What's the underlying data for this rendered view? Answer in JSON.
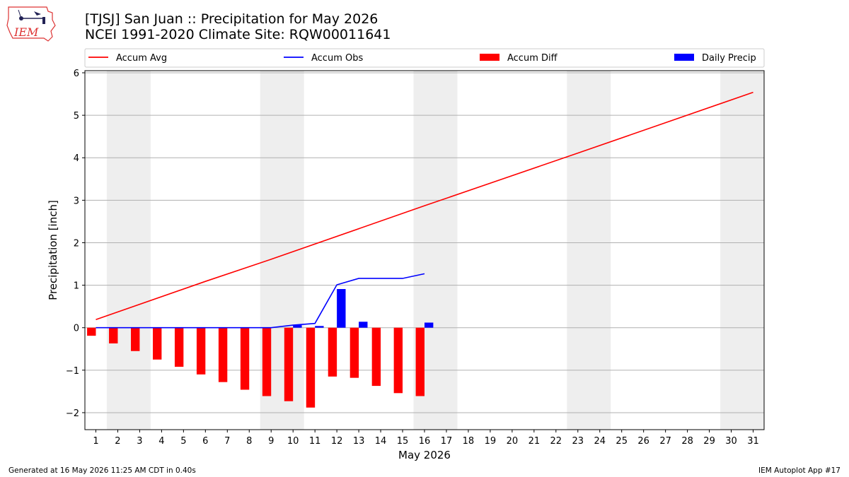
{
  "header": {
    "title_line1": "[TJSJ] San Juan :: Precipitation for May 2026",
    "title_line2": "NCEI 1991-2020 Climate Site: RQW00011641",
    "logo_text": "IEM"
  },
  "footer": {
    "left": "Generated at 16 May 2026 11:25 AM CDT in 0.40s",
    "right": "IEM Autoplot App #17"
  },
  "colors": {
    "avg": "#ff0000",
    "obs": "#0000ff",
    "diff": "#ff0000",
    "daily": "#0000ff",
    "weekend": "#eeeeee",
    "grid": "#b0b0b0"
  },
  "chart_data": {
    "type": "bar",
    "xlabel": "May 2026",
    "ylabel": "Precipitation [inch]",
    "ylim": [
      -2.4,
      6.05
    ],
    "xlim": [
      0.5,
      31.5
    ],
    "yticks": [
      -2,
      -1,
      0,
      1,
      2,
      3,
      4,
      5,
      6
    ],
    "ytick_labels": [
      "−2",
      "−1",
      "0",
      "1",
      "2",
      "3",
      "4",
      "5",
      "6"
    ],
    "days": [
      1,
      2,
      3,
      4,
      5,
      6,
      7,
      8,
      9,
      10,
      11,
      12,
      13,
      14,
      15,
      16,
      17,
      18,
      19,
      20,
      21,
      22,
      23,
      24,
      25,
      26,
      27,
      28,
      29,
      30,
      31
    ],
    "weekend_spans": [
      [
        2,
        3
      ],
      [
        9,
        10
      ],
      [
        16,
        17
      ],
      [
        23,
        24
      ],
      [
        30,
        31
      ]
    ],
    "grid": "horizontal",
    "legend": {
      "placement": "top",
      "entries": [
        "Accum Avg",
        "Accum Obs",
        "Accum Diff",
        "Daily Precip"
      ]
    },
    "series": [
      {
        "name": "Accum Avg",
        "kind": "line",
        "x": [
          1,
          6,
          9,
          16,
          23,
          31
        ],
        "values": [
          0.19,
          1.09,
          1.61,
          2.87,
          4.11,
          5.54
        ]
      },
      {
        "name": "Accum Obs",
        "kind": "line",
        "x": [
          1,
          2,
          3,
          4,
          5,
          6,
          7,
          8,
          9,
          10,
          11,
          12,
          13,
          14,
          15,
          16
        ],
        "values": [
          0,
          0,
          0,
          0,
          0,
          0,
          0,
          0,
          0,
          0.06,
          0.1,
          1.01,
          1.16,
          1.16,
          1.16,
          1.27
        ]
      },
      {
        "name": "Accum Diff",
        "kind": "bar",
        "x": [
          1,
          2,
          3,
          4,
          5,
          6,
          7,
          8,
          9,
          10,
          11,
          12,
          13,
          14,
          15,
          16
        ],
        "values": [
          -0.19,
          -0.37,
          -0.55,
          -0.75,
          -0.92,
          -1.1,
          -1.28,
          -1.46,
          -1.61,
          -1.73,
          -1.88,
          -1.15,
          -1.18,
          -1.37,
          -1.54,
          -1.61
        ]
      },
      {
        "name": "Daily Precip",
        "kind": "bar",
        "x": [
          1,
          2,
          3,
          4,
          5,
          6,
          7,
          8,
          9,
          10,
          11,
          12,
          13,
          14,
          15,
          16
        ],
        "values": [
          0,
          0,
          0,
          0,
          0,
          0,
          0,
          0,
          0,
          0.06,
          0.04,
          0.91,
          0.14,
          0,
          0,
          0.12
        ]
      }
    ]
  }
}
